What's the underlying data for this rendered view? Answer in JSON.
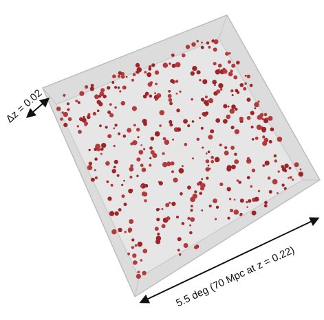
{
  "depth_label": "Δz = 0.02",
  "width_label": "5.5 deg (70 Mpc at z = 0.22)"
}
